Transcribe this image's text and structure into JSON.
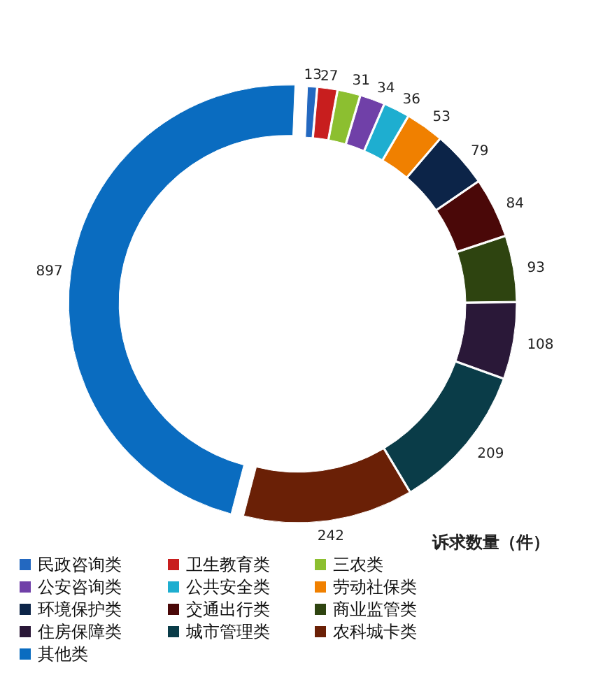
{
  "chart_data": {
    "type": "donut",
    "title": "诉求数量（件）",
    "categories": [
      "民政咨询类",
      "卫生教育类",
      "三农类",
      "公安咨询类",
      "公共安全类",
      "劳动社保类",
      "环境保护类",
      "交通出行类",
      "商业监管类",
      "住房保障类",
      "城市管理类",
      "农科城卡类",
      "其他类"
    ],
    "values": [
      13,
      27,
      31,
      34,
      36,
      53,
      79,
      84,
      93,
      108,
      209,
      242,
      897
    ],
    "colors": [
      "#2368c0",
      "#c81e1e",
      "#8cbf30",
      "#7040a8",
      "#1eaed0",
      "#f08000",
      "#0c2448",
      "#4a0808",
      "#2e4410",
      "#2a1838",
      "#0a3c48",
      "#6a2006",
      "#0a6cc0"
    ],
    "data_labels": true,
    "legend": "bottom"
  }
}
